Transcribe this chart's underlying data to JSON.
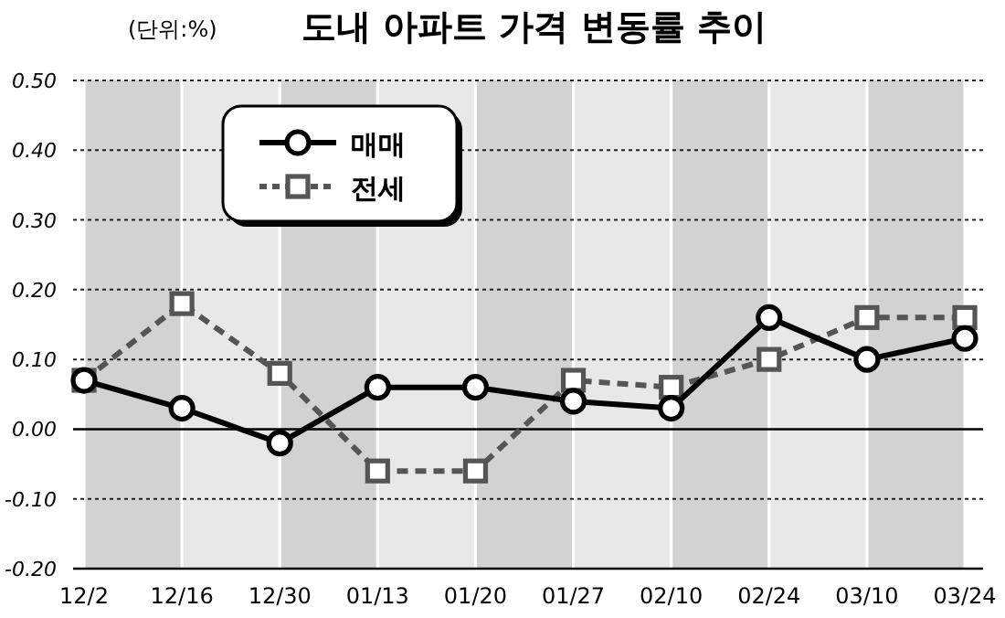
{
  "chart_data": {
    "type": "line",
    "title": "도내  아파트 가격 변동률 추이",
    "subtitle": "(단위:%)",
    "categories": [
      "12/2",
      "12/16",
      "12/30",
      "01/13",
      "01/20",
      "01/27",
      "02/10",
      "02/24",
      "03/10",
      "03/24"
    ],
    "series": [
      {
        "name": "매매",
        "color": "#000000",
        "marker": "circle",
        "line_style": "solid",
        "values": [
          0.07,
          0.03,
          -0.02,
          0.06,
          0.06,
          0.04,
          0.03,
          0.16,
          0.1,
          0.13
        ]
      },
      {
        "name": "전세",
        "color": "#555555",
        "marker": "square",
        "line_style": "dashed",
        "values": [
          0.07,
          0.18,
          0.08,
          -0.06,
          -0.06,
          0.07,
          0.06,
          0.1,
          0.16,
          0.16
        ]
      }
    ],
    "ylim": [
      -0.2,
      0.5
    ],
    "yticks": [
      {
        "value": -0.2,
        "label": "-0.20"
      },
      {
        "value": -0.1,
        "label": "-0.10"
      },
      {
        "value": 0,
        "label": "0.00"
      },
      {
        "value": 0.1,
        "label": "0.10"
      },
      {
        "value": 0.2,
        "label": "0.20"
      },
      {
        "value": 0.3,
        "label": "0.30"
      },
      {
        "value": 0.4,
        "label": "0.40"
      },
      {
        "value": 0.5,
        "label": "0.50"
      }
    ],
    "bands": [
      {
        "axis": "x",
        "from": "12/2",
        "to": "12/16",
        "color": "#d2d2d2"
      },
      {
        "axis": "x",
        "from": "12/16",
        "to": "12/30",
        "color": "#e8e8e8"
      },
      {
        "axis": "x",
        "from": "12/30",
        "to": "01/13",
        "color": "#d2d2d2"
      },
      {
        "axis": "x",
        "from": "01/13",
        "to": "01/20",
        "color": "#e8e8e8"
      },
      {
        "axis": "x",
        "from": "01/20",
        "to": "01/27",
        "color": "#d2d2d2"
      },
      {
        "axis": "x",
        "from": "01/27",
        "to": "02/10",
        "color": "#e8e8e8"
      },
      {
        "axis": "x",
        "from": "02/10",
        "to": "02/24",
        "color": "#d2d2d2"
      },
      {
        "axis": "x",
        "from": "02/24",
        "to": "03/10",
        "color": "#e8e8e8"
      },
      {
        "axis": "x",
        "from": "03/10",
        "to": "03/24",
        "color": "#d2d2d2"
      }
    ],
    "grid": "y",
    "legend": "top left"
  }
}
